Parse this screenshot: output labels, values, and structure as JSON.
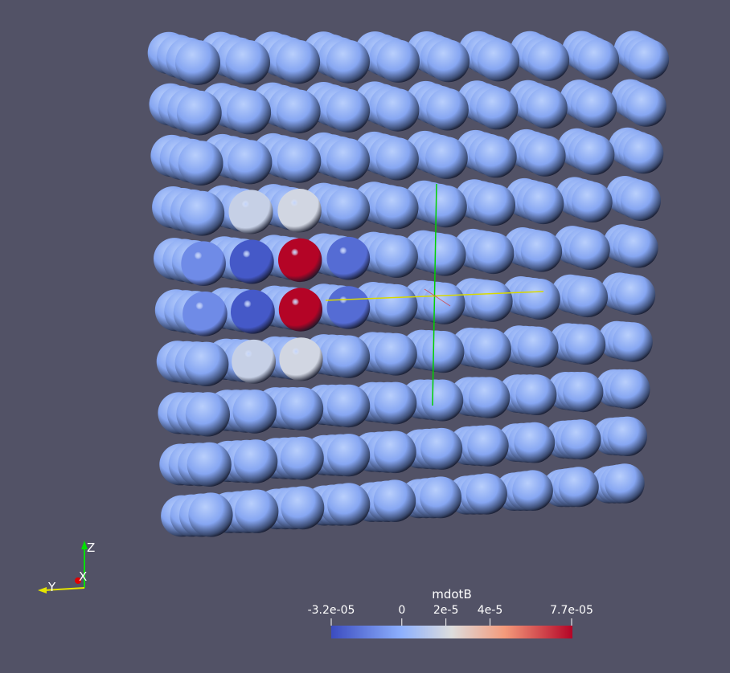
{
  "scene": {
    "background": "#525266",
    "sphere_base_color": "#8aaaf6",
    "grid_columns": 10,
    "grid_rows": 10,
    "depth_layers": 3,
    "highlighted_spheres": [
      {
        "col": 2,
        "row": 4,
        "value": 7.7e-05
      },
      {
        "col": 2,
        "row": 5,
        "value": 7.7e-05
      },
      {
        "col": 1,
        "row": 4,
        "value": -2.8e-05
      },
      {
        "col": 1,
        "row": 5,
        "value": -2.8e-05
      },
      {
        "col": 3,
        "row": 4,
        "value": -2.2e-05
      },
      {
        "col": 3,
        "row": 5,
        "value": -2.2e-05
      },
      {
        "col": 0,
        "row": 4,
        "value": -1.2e-05
      },
      {
        "col": 0,
        "row": 5,
        "value": -1.2e-05
      },
      {
        "col": 1,
        "row": 3,
        "value": 1.6e-05
      },
      {
        "col": 2,
        "row": 3,
        "value": 1.9e-05
      },
      {
        "col": 1,
        "row": 6,
        "value": 1.6e-05
      },
      {
        "col": 2,
        "row": 6,
        "value": 1.9e-05
      }
    ]
  },
  "orientation_axes": {
    "z_label": "Z",
    "y_label": "Y",
    "x_label": "X",
    "z_color": "#00e000",
    "y_color": "#e6e600",
    "x_color": "#e00000"
  },
  "center_axes": {
    "vertical_color": "#00d000",
    "horizontal_color": "#d8d800"
  },
  "colorbar": {
    "title": "mdotB",
    "min_label": "-3.2e-05",
    "max_label": "7.7e-05",
    "min": -3.2e-05,
    "max": 7.7e-05,
    "ticks": [
      {
        "value": 0,
        "label": "0"
      },
      {
        "value": 2e-05,
        "label": "2e-5"
      },
      {
        "value": 4e-05,
        "label": "4e-5"
      }
    ],
    "colormap": "Cool to Warm",
    "stops": [
      "#3b4cc0",
      "#8db0fe",
      "#dddddd",
      "#f49a7b",
      "#b40426"
    ]
  }
}
